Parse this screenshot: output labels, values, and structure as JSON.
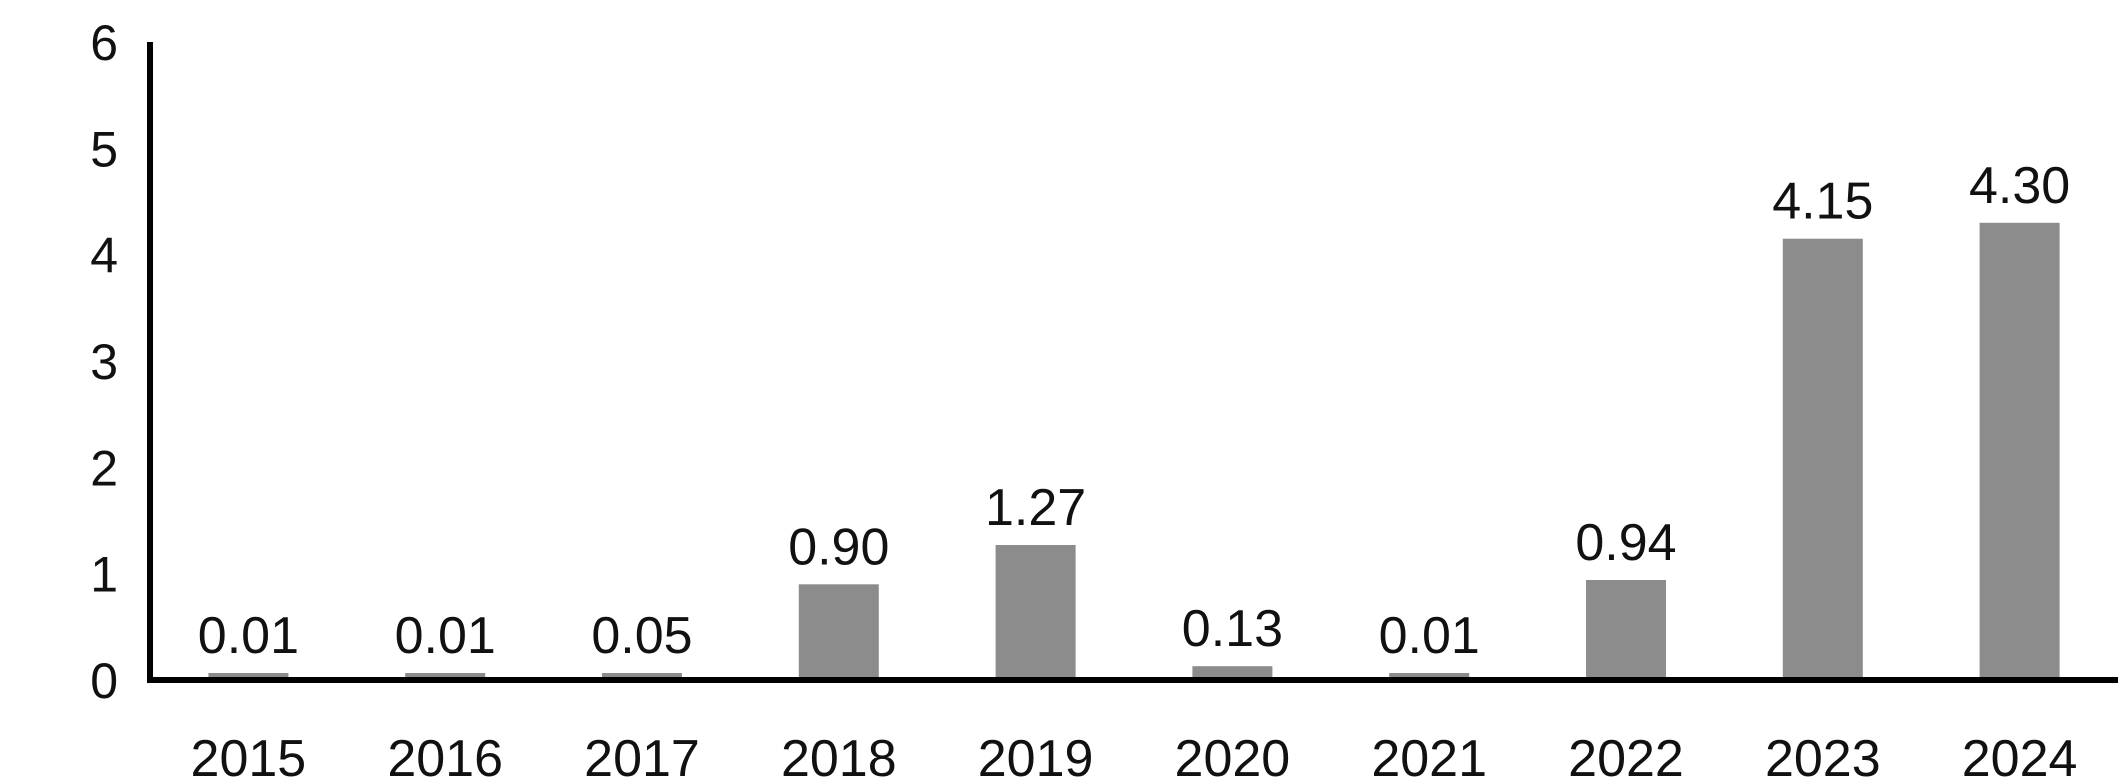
{
  "chart_data": {
    "type": "bar",
    "title": "",
    "xlabel": "",
    "ylabel": "",
    "categories": [
      "2015",
      "2016",
      "2017",
      "2018",
      "2019",
      "2020",
      "2021",
      "2022",
      "2023",
      "2024"
    ],
    "values": [
      0.01,
      0.01,
      0.05,
      0.9,
      1.27,
      0.13,
      0.01,
      0.94,
      4.15,
      4.3
    ],
    "data_labels": [
      "0.01",
      "0.01",
      "0.05",
      "0.90",
      "1.27",
      "0.13",
      "0.01",
      "0.94",
      "4.15",
      "4.30"
    ],
    "y_ticks": [
      "0",
      "1",
      "2",
      "3",
      "4",
      "5",
      "6"
    ],
    "ylim": [
      0,
      6
    ],
    "grid": false,
    "legend": "none",
    "colors": {
      "bar": "#8c8c8c",
      "axis": "#000000",
      "text": "#111111"
    }
  }
}
